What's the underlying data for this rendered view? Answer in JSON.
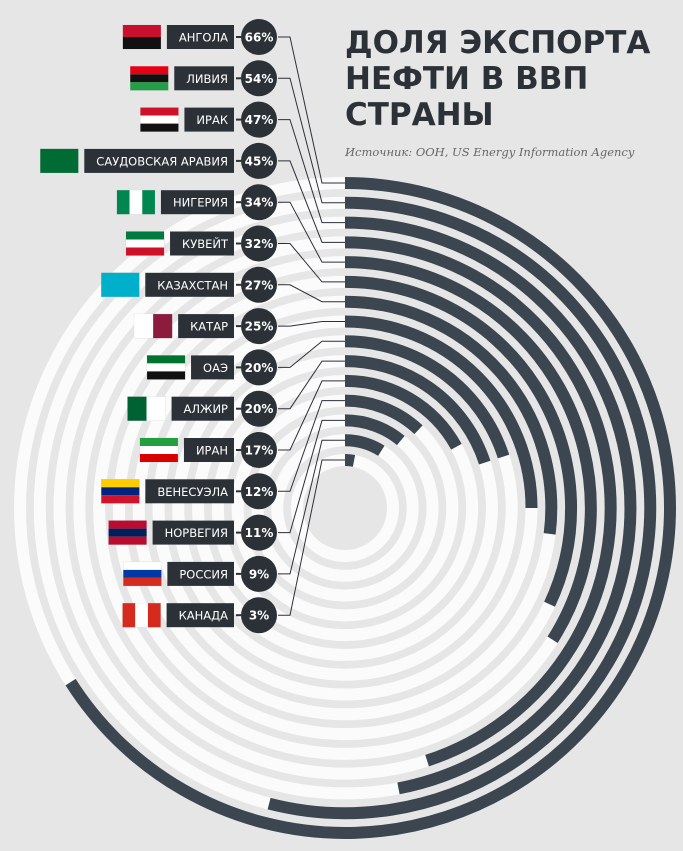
{
  "chart_data": {
    "type": "radial-bar",
    "title": "ДОЛЯ ЭКСПОРТА НЕФТИ В ВВП СТРАНЫ",
    "subtitle": "Источник: ООН, US Energy Information Agency",
    "categories": [
      "АНГОЛА",
      "ЛИВИЯ",
      "ИРАК",
      "САУДОВСКАЯ АРАВИЯ",
      "НИГЕРИЯ",
      "КУВЕЙТ",
      "КАЗАХСТАН",
      "КАТАР",
      "ОАЭ",
      "АЛЖИР",
      "ИРАН",
      "ВЕНЕСУЭЛА",
      "НОРВЕГИЯ",
      "РОССИЯ",
      "КАНАДА"
    ],
    "values": [
      66,
      54,
      47,
      45,
      34,
      32,
      27,
      25,
      20,
      20,
      17,
      12,
      11,
      9,
      3
    ],
    "value_labels": [
      "66%",
      "54%",
      "47%",
      "45%",
      "34%",
      "32%",
      "27%",
      "25%",
      "20%",
      "20%",
      "17%",
      "12%",
      "11%",
      "9%",
      "3%"
    ],
    "color": "#3b4650"
  }
}
